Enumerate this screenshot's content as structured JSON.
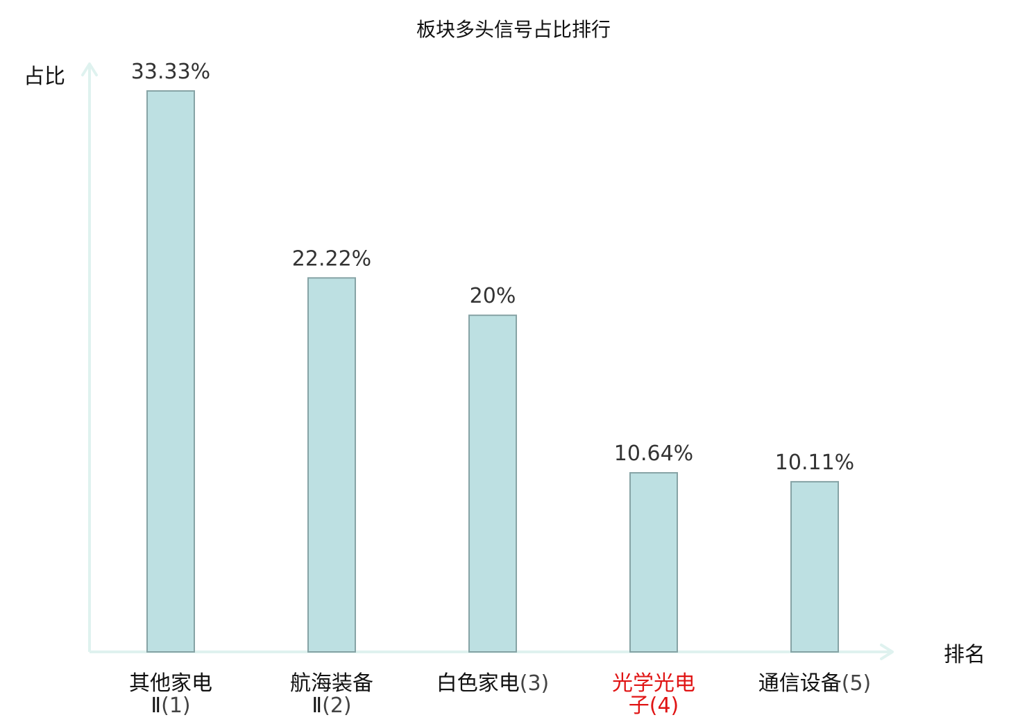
{
  "chart_data": {
    "type": "bar",
    "title": "板块多头信号占比排行",
    "xlabel": "排名",
    "ylabel": "占比",
    "ylim": [
      0,
      33.33
    ],
    "grid": false,
    "categories": [
      {
        "name_lines": [
          "其他家电",
          "Ⅱ"
        ],
        "rank": "(1)",
        "highlight": false
      },
      {
        "name_lines": [
          "航海装备",
          "Ⅱ"
        ],
        "rank": "(2)",
        "highlight": false
      },
      {
        "name_lines": [
          "白色家电"
        ],
        "rank": "(3)",
        "highlight": false
      },
      {
        "name_lines": [
          "光学光电",
          "子"
        ],
        "rank": "(4)",
        "highlight": true
      },
      {
        "name_lines": [
          "通信设备"
        ],
        "rank": "(5)",
        "highlight": false
      }
    ],
    "values": [
      33.33,
      22.22,
      20,
      10.64,
      10.11
    ],
    "value_labels": [
      "33.33%",
      "22.22%",
      "20%",
      "10.64%",
      "10.11%"
    ],
    "colors": {
      "bar_fill": "#bde0e2",
      "bar_stroke": "#86a3a5",
      "axis": "#dff2ef",
      "highlight_text": "#e01414"
    }
  }
}
